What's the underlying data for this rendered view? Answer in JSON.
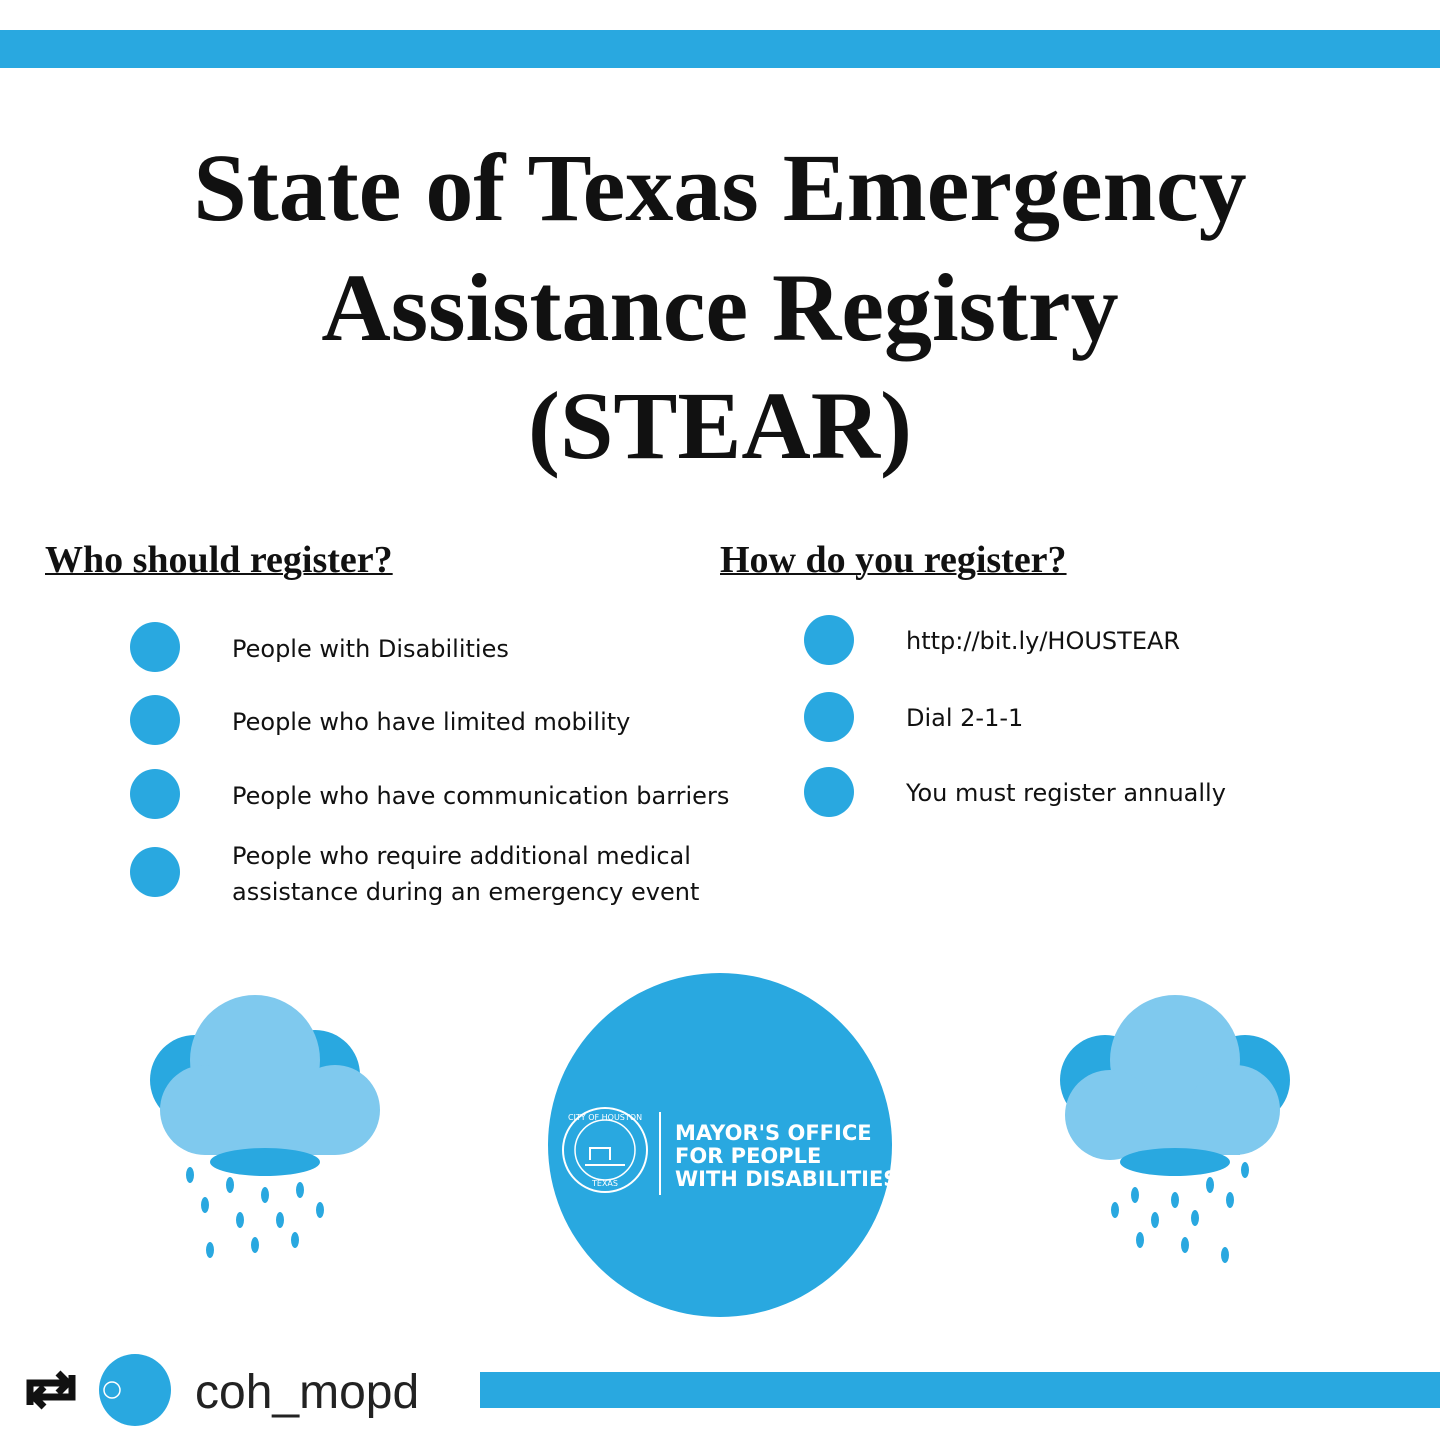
{
  "title": {
    "lines": [
      "State of Texas Emergency",
      "Assistance Registry",
      "(STEAR)"
    ]
  },
  "who": {
    "heading": "Who should register?",
    "items": [
      "People with Disabilities",
      "People who have limited mobility",
      "People who have communication barriers",
      "People who require additional medical assistance during an emergency event"
    ]
  },
  "how": {
    "heading": "How do you register?",
    "items": [
      "http://bit.ly/HOUSTEAR",
      "Dial 2-1-1",
      "You must register annually"
    ]
  },
  "logo": {
    "lines": [
      "MAYOR'S OFFICE",
      "FOR PEOPLE",
      "WITH DISABILITIES"
    ],
    "seal_top": "CITY OF HOUSTON",
    "seal_bottom": "TEXAS"
  },
  "footer": {
    "username": "coh_mopd"
  }
}
